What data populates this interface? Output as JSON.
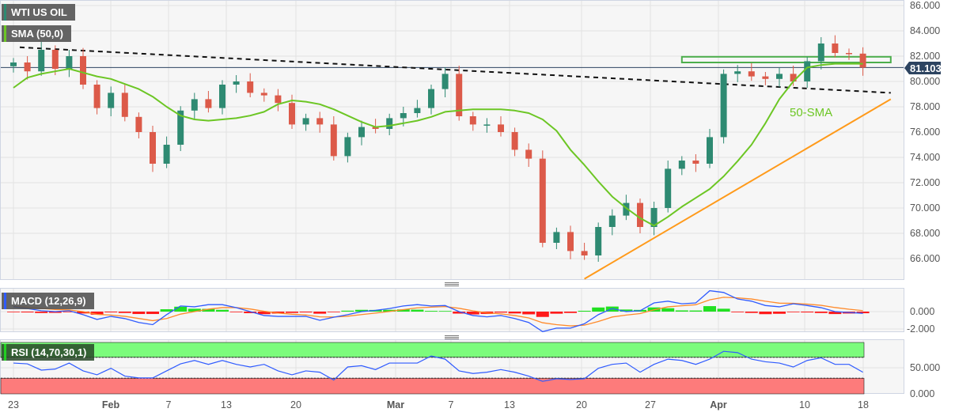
{
  "labels": {
    "instrument": "WTI US OIL",
    "sma_indicator": "SMA (50,0)",
    "macd_indicator": "MACD (12,26,9)",
    "rsi_indicator": "RSI (14,70,30,1)",
    "sma_annotation": "50-SMA",
    "last_price": "81.103"
  },
  "colors": {
    "bull_candle": "#2e8a72",
    "bear_candle": "#dc5a49",
    "sma": "#6cc624",
    "resistance_line": "#111111",
    "support_line": "#ff9a1a",
    "zone_box": "#4cae4c",
    "price_line": "#2d4461",
    "macd": "#2f5bff",
    "signal": "#ff8a2a",
    "hist_up": "#22e022",
    "hist_down": "#ff1a1a",
    "rsi": "#2f5bff",
    "rsi_overbought_zone": "#7cfc7c",
    "rsi_oversold_zone": "#fd7b7b"
  },
  "axes": {
    "price_ticks": [
      "86.000",
      "84.000",
      "82.000",
      "80.000",
      "78.000",
      "76.000",
      "74.000",
      "72.000",
      "70.000",
      "68.000",
      "66.000"
    ],
    "macd_ticks": [
      "0.000",
      "-2.000"
    ],
    "rsi_ticks": [
      "50.000",
      "0.000"
    ],
    "x_ticks": [
      "23",
      "Feb",
      "7",
      "13",
      "20",
      "Mar",
      "7",
      "13",
      "20",
      "27",
      "Apr",
      "10",
      "18"
    ]
  },
  "chart_data": {
    "type": "candlestick",
    "title": "WTI US OIL",
    "first_date": "Jan 23",
    "ylim": [
      64.4,
      86.4
    ],
    "grid": true,
    "close": [
      81.5,
      80.8,
      82.5,
      81.0,
      82.0,
      79.75,
      77.9,
      79.1,
      77.2,
      76.0,
      73.5,
      75.0,
      77.7,
      78.6,
      77.9,
      79.75,
      80.0,
      79.1,
      78.9,
      78.3,
      76.6,
      77.1,
      76.6,
      74.1,
      75.6,
      76.4,
      76.25,
      77.1,
      77.5,
      77.9,
      79.4,
      80.6,
      77.25,
      76.6,
      76.6,
      76.0,
      74.6,
      73.9,
      67.25,
      68.1,
      66.6,
      66.25,
      68.5,
      69.4,
      70.4,
      68.5,
      70.0,
      73.1,
      73.75,
      73.5,
      75.6,
      80.6,
      80.8,
      80.4,
      80.2,
      80.6,
      80.0,
      81.6,
      83.0,
      82.25,
      82.2,
      81.1
    ],
    "first_open": 81.2,
    "sma_50": [
      79.5,
      80.3,
      80.6,
      80.8,
      81.0,
      80.7,
      80.4,
      80.2,
      79.8,
      79.4,
      78.8,
      78.0,
      77.3,
      77.0,
      76.9,
      77.0,
      77.1,
      77.3,
      77.6,
      78.2,
      78.5,
      78.4,
      78.2,
      77.8,
      77.3,
      76.8,
      76.4,
      76.5,
      76.7,
      76.9,
      77.2,
      77.6,
      77.7,
      77.8,
      77.8,
      77.8,
      77.7,
      77.5,
      77.0,
      76.1,
      74.6,
      73.4,
      72.1,
      70.9,
      70.0,
      69.2,
      68.6,
      69.3,
      70.1,
      70.8,
      71.5,
      72.5,
      73.7,
      75.0,
      76.7,
      78.6,
      80.0,
      81.1,
      81.3,
      81.4,
      81.4,
      81.4
    ],
    "last_price": 81.103,
    "drawings": {
      "descending_trendline": {
        "style": "dashed",
        "from": {
          "date": "Jan 23",
          "price": 82.7
        },
        "to": {
          "date": "Apr 20",
          "price": 79.1
        }
      },
      "ascending_support": {
        "style": "solid",
        "from": {
          "date": "Mar 21",
          "price": 64.4
        },
        "to": {
          "date": "Apr 20",
          "price": 78.6
        }
      },
      "resistance_zone": {
        "from": {
          "date": "Mar 30",
          "price": 81.95
        },
        "to": {
          "date": "Apr 20",
          "price": 81.5
        }
      }
    },
    "macd": {
      "ylim": [
        -2.4,
        2.5
      ],
      "macd": [
        0.55,
        0.35,
        0.1,
        0,
        0.1,
        -0.35,
        -0.9,
        -0.55,
        -0.8,
        -1.25,
        -1.5,
        -0.35,
        0.65,
        0.55,
        0.8,
        0.8,
        0.45,
        0,
        -0.45,
        -0.55,
        -0.55,
        -0.55,
        -1.0,
        -0.65,
        -0.35,
        0,
        0.15,
        0.35,
        0.65,
        0.8,
        0.65,
        0.7,
        0,
        -0.45,
        -0.6,
        -0.45,
        -0.8,
        -1.25,
        -2.3,
        -1.9,
        -1.9,
        -1.4,
        -0.35,
        0.35,
        0,
        0.1,
        1.0,
        1.2,
        0.9,
        1.0,
        2.4,
        2.2,
        1.45,
        1.2,
        0.7,
        0.55,
        0.9,
        0.7,
        0.45,
        0,
        -0.1,
        -0.2
      ],
      "signal": [
        0.6,
        0.51,
        0.37,
        0.24,
        0.19,
        0.0,
        -0.32,
        -0.4,
        -0.54,
        -0.79,
        -1.04,
        -0.8,
        -0.29,
        0.0,
        0.28,
        0.46,
        0.46,
        0.3,
        0.04,
        -0.17,
        -0.3,
        -0.39,
        -0.6,
        -0.62,
        -0.53,
        -0.34,
        -0.17,
        0.01,
        0.23,
        0.43,
        0.51,
        0.58,
        0.38,
        0.09,
        -0.15,
        -0.26,
        -0.45,
        -0.73,
        -1.28,
        -1.5,
        -1.64,
        -1.56,
        -1.14,
        -0.62,
        -0.4,
        -0.23,
        0.2,
        0.55,
        0.67,
        0.79,
        1.35,
        1.65,
        1.58,
        1.45,
        1.19,
        0.97,
        0.95,
        0.86,
        0.72,
        0.47,
        0.27,
        0.11
      ]
    },
    "rsi": {
      "ylim": [
        0,
        100
      ],
      "overbought": 70,
      "oversold": 30,
      "values": [
        59,
        57.5,
        45.5,
        47.5,
        59,
        44,
        36.5,
        49,
        34,
        30.5,
        30.5,
        44,
        57.5,
        64,
        56.5,
        64,
        56.5,
        51.5,
        56.5,
        44,
        36.5,
        44,
        41.5,
        26.5,
        51.5,
        54,
        46.5,
        59,
        59,
        59,
        72.5,
        66.5,
        44,
        39,
        41.5,
        46.5,
        41.5,
        34,
        24,
        29,
        27.5,
        29,
        49,
        56.5,
        59,
        41.5,
        56.5,
        66.5,
        64,
        56.5,
        66.5,
        81.5,
        79,
        66.5,
        61.5,
        59,
        51.5,
        64,
        69,
        56.5,
        56.5,
        41.5
      ]
    }
  }
}
